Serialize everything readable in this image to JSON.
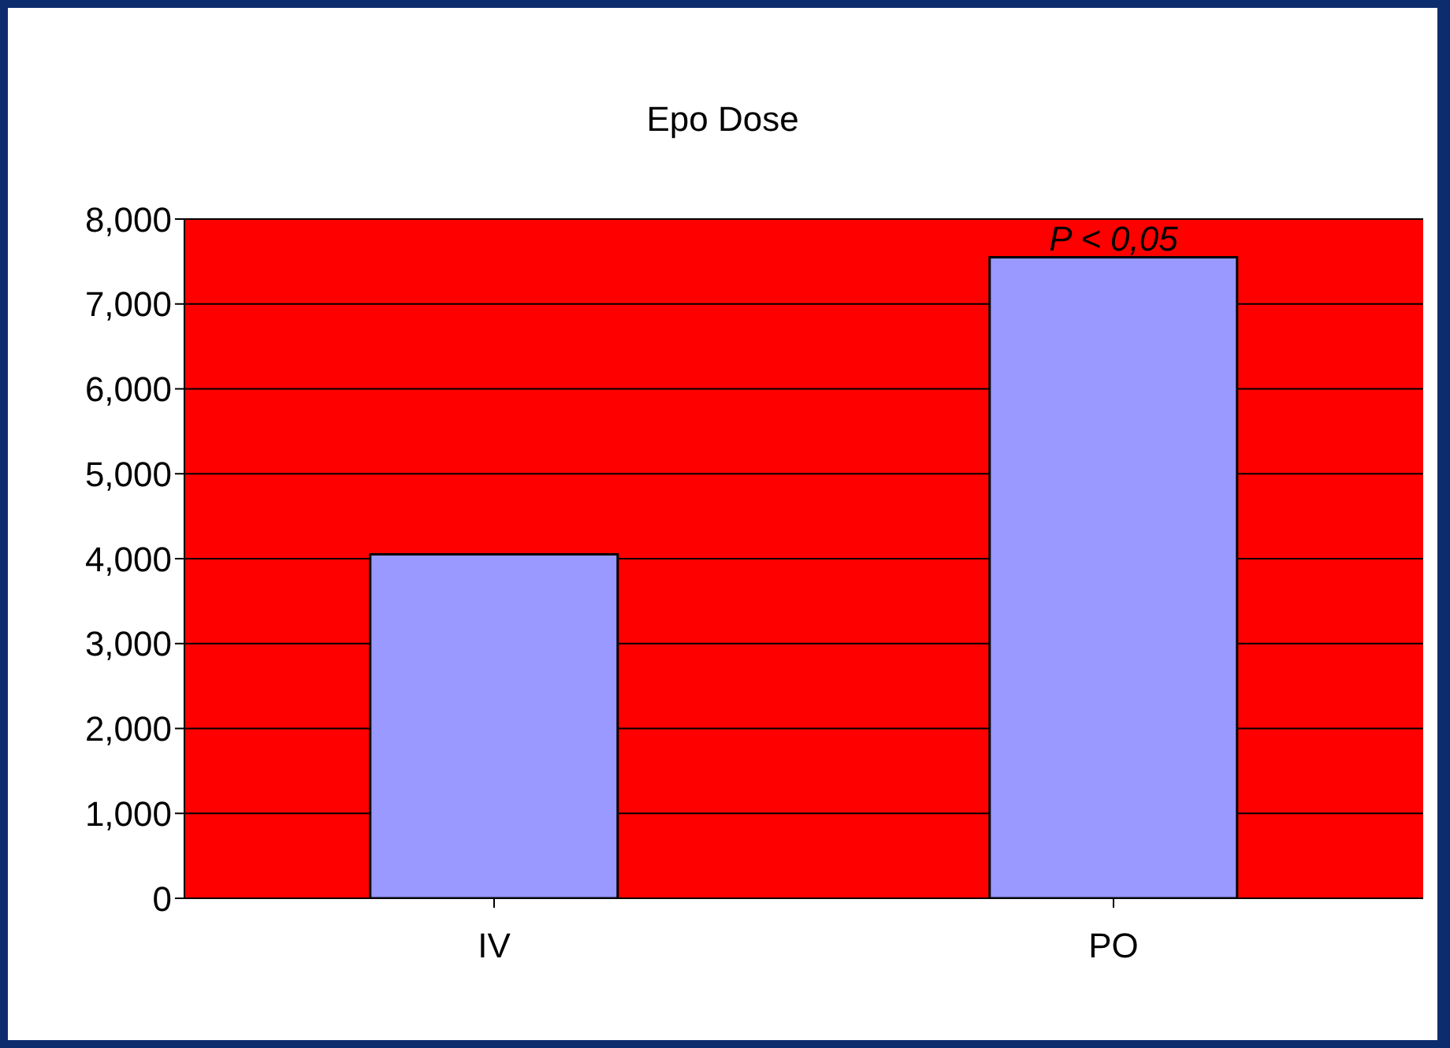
{
  "chart_data": {
    "type": "bar",
    "title": "Epo Dose",
    "categories": [
      "IV",
      "PO"
    ],
    "values": [
      4050,
      7550
    ],
    "color": "#9999ff",
    "ylim": [
      0,
      8000
    ],
    "yticks": [
      {
        "value": 0,
        "label": "0"
      },
      {
        "value": 1000,
        "label": "1,000"
      },
      {
        "value": 2000,
        "label": "2,000"
      },
      {
        "value": 3000,
        "label": "3,000"
      },
      {
        "value": 4000,
        "label": "4,000"
      },
      {
        "value": 5000,
        "label": "5,000"
      },
      {
        "value": 6000,
        "label": "6,000"
      },
      {
        "value": 7000,
        "label": "7,000"
      },
      {
        "value": 8000,
        "label": "8,000"
      }
    ],
    "grid": "y",
    "annotations": [
      {
        "text": "P < 0,05",
        "x": "PO",
        "y": 7550
      }
    ]
  }
}
